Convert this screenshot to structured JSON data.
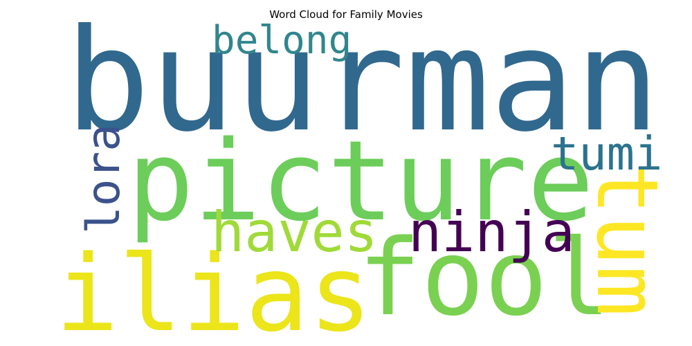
{
  "chart_data": {
    "type": "wordcloud",
    "title": "Word Cloud for Family Movies",
    "words": [
      {
        "text": "buurman",
        "weight": 1.0,
        "color": "#31688e",
        "orientation": "horizontal"
      },
      {
        "text": "picture",
        "weight": 0.8,
        "color": "#6ccd5a",
        "orientation": "horizontal"
      },
      {
        "text": "ilias",
        "weight": 0.75,
        "color": "#ebe51a",
        "orientation": "horizontal"
      },
      {
        "text": "fool",
        "weight": 0.75,
        "color": "#7ad151",
        "orientation": "horizontal"
      },
      {
        "text": "tum",
        "weight": 0.6,
        "color": "#fde725",
        "orientation": "vertical"
      },
      {
        "text": "haves",
        "weight": 0.45,
        "color": "#a0da39",
        "orientation": "horizontal"
      },
      {
        "text": "ninja",
        "weight": 0.45,
        "color": "#440154",
        "orientation": "horizontal"
      },
      {
        "text": "tumi",
        "weight": 0.38,
        "color": "#2c728e",
        "orientation": "horizontal"
      },
      {
        "text": "lora",
        "weight": 0.35,
        "color": "#3b528b",
        "orientation": "vertical"
      },
      {
        "text": "belong",
        "weight": 0.3,
        "color": "#31868d",
        "orientation": "horizontal"
      }
    ]
  }
}
